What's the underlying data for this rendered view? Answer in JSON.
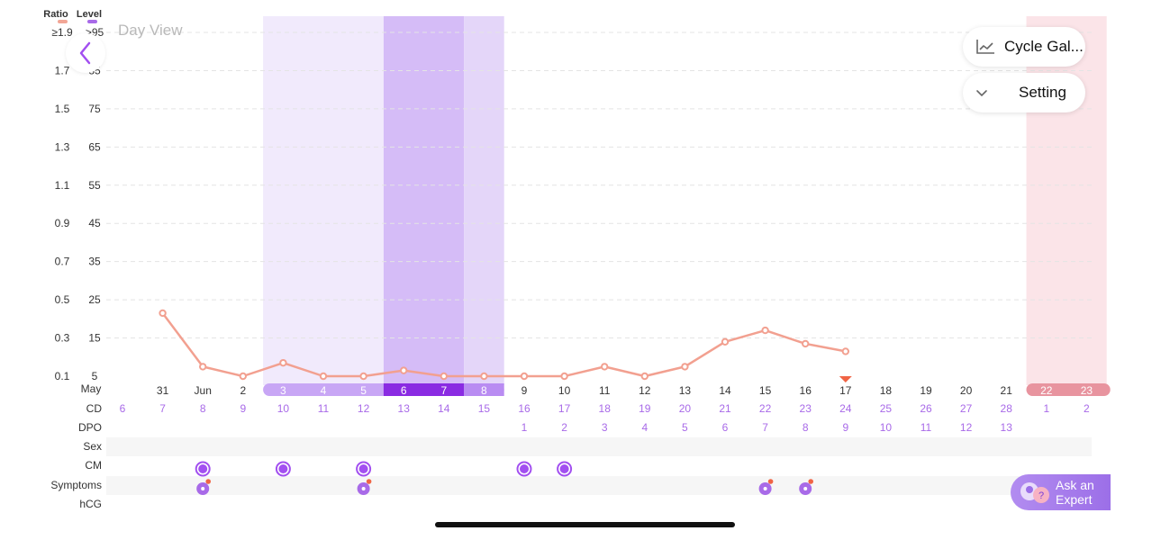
{
  "view_title": "Day View",
  "buttons": {
    "cycle_gallery": "Cycle Gal...",
    "setting": "Setting",
    "ask_expert_line1": "Ask an",
    "ask_expert_line2": "Expert"
  },
  "legend": {
    "ratio": "Ratio",
    "level": "Level",
    "ratio_color": "#f2a696",
    "level_color": "#a86ae8"
  },
  "icons": [
    "back-chevron-icon",
    "line-chart-icon",
    "chevron-down-icon",
    "expert-chat-icon"
  ],
  "colors": {
    "line": "#f2a090",
    "purple": "#a86ae8",
    "fertile_light": "#f1eafc",
    "fertile_mid": "#e4d6f9",
    "peak": "#d5bcf7",
    "period": "#fbe4e8",
    "period_bar": "#e8949f",
    "cd_text": "#a86ae8"
  },
  "chart_data": {
    "type": "line",
    "title": "",
    "y_ratio_ticks": [
      "≥1.9",
      "1.7",
      "1.5",
      "1.3",
      "1.1",
      "0.9",
      "0.7",
      "0.5",
      "0.3",
      "0.1"
    ],
    "y_level_ticks": [
      ">95",
      "85",
      "75",
      "65",
      "55",
      "45",
      "35",
      "25",
      "15",
      "5"
    ],
    "ylim_ratio": [
      0.1,
      1.9
    ],
    "month_start_label": "May",
    "date_labels": [
      "",
      "31",
      "Jun",
      "2",
      "3",
      "4",
      "5",
      "6",
      "7",
      "8",
      "9",
      "10",
      "11",
      "12",
      "13",
      "14",
      "15",
      "16",
      "17",
      "18",
      "19",
      "20",
      "21",
      "22",
      "23"
    ],
    "cd": [
      "6",
      "7",
      "8",
      "9",
      "10",
      "11",
      "12",
      "13",
      "14",
      "15",
      "16",
      "17",
      "18",
      "19",
      "20",
      "21",
      "22",
      "23",
      "24",
      "25",
      "26",
      "27",
      "28",
      "1",
      "2"
    ],
    "dpo": [
      "",
      "",
      "",
      "",
      "",
      "",
      "",
      "",
      "",
      "",
      "1",
      "2",
      "3",
      "4",
      "5",
      "6",
      "7",
      "8",
      "9",
      "10",
      "11",
      "12",
      "13",
      "",
      ""
    ],
    "row_labels": [
      "CD",
      "DPO",
      "Sex",
      "CM",
      "Symptoms",
      "hCG"
    ],
    "series": [
      {
        "points": [
          [
            1,
            0.43
          ],
          [
            2,
            0.15
          ],
          [
            3,
            0.1
          ],
          [
            4,
            0.17
          ],
          [
            5,
            0.1
          ],
          [
            6,
            0.1
          ],
          [
            7,
            0.13
          ],
          [
            8,
            0.1
          ],
          [
            9,
            0.1
          ],
          [
            10,
            0.1
          ],
          [
            11,
            0.1
          ],
          [
            12,
            0.15
          ],
          [
            13,
            0.1
          ],
          [
            14,
            0.15
          ],
          [
            15,
            0.28
          ],
          [
            16,
            0.34
          ],
          [
            17,
            0.27
          ],
          [
            18,
            0.23
          ]
        ]
      }
    ],
    "fertile_window_days": [
      4,
      9
    ],
    "peak_days": [
      7,
      8
    ],
    "period_days": [
      23,
      24
    ],
    "today_marker_day": 18,
    "cm_days": [
      2,
      4,
      6,
      10,
      11
    ],
    "symptom_days": [
      2,
      6,
      16,
      17
    ]
  }
}
